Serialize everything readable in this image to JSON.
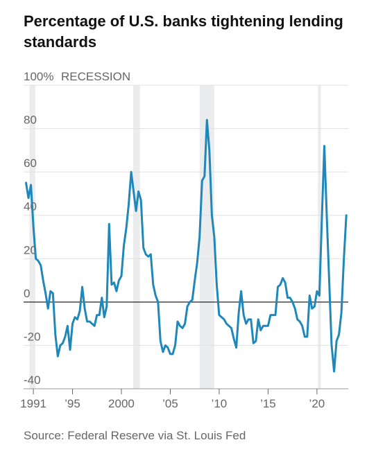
{
  "title": "Percentage of U.S. banks tightening lending standards",
  "source": "Source: Federal Reserve via St. Louis Fed",
  "chart_data": {
    "type": "line",
    "title": "Percentage of U.S. banks tightening lending standards",
    "xlim": [
      1990.0,
      2023.2
    ],
    "ylim": [
      -40,
      100
    ],
    "y_ticks": [
      {
        "value": 100,
        "label": "100%"
      },
      {
        "value": 80,
        "label": "80"
      },
      {
        "value": 60,
        "label": "60"
      },
      {
        "value": 40,
        "label": "40"
      },
      {
        "value": 20,
        "label": "20"
      },
      {
        "value": 0,
        "label": "0"
      },
      {
        "value": -20,
        "label": "-20"
      },
      {
        "value": -40,
        "label": "-40"
      }
    ],
    "x_ticks": [
      {
        "value": 1991,
        "label": "1991"
      },
      {
        "value": 1995,
        "label": "’95"
      },
      {
        "value": 2000,
        "label": "2000"
      },
      {
        "value": 2005,
        "label": "’05"
      },
      {
        "value": 2010,
        "label": "’10"
      },
      {
        "value": 2015,
        "label": "’15"
      },
      {
        "value": 2020,
        "label": "’20"
      }
    ],
    "recession_label": "RECESSION",
    "recessions": [
      [
        1990.6,
        1991.2
      ],
      [
        2001.2,
        2001.9
      ],
      [
        2008.0,
        2009.5
      ],
      [
        2020.1,
        2020.4
      ]
    ],
    "zero_line": true,
    "grid": true,
    "colors": {
      "line": "#1f87b9",
      "recession": "#eaecee",
      "grid": "#e0e0e0",
      "zero": "#222222"
    },
    "series": [
      {
        "x": [
          1990.25,
          1990.5,
          1990.75,
          1991.0,
          1991.25,
          1991.5,
          1991.75,
          1992.0,
          1992.25,
          1992.5,
          1992.75,
          1993.0,
          1993.25,
          1993.5,
          1993.75,
          1994.0,
          1994.25,
          1994.5,
          1994.75,
          1995.0,
          1995.25,
          1995.5,
          1995.75,
          1996.0,
          1996.25,
          1996.5,
          1996.75,
          1997.0,
          1997.25,
          1997.5,
          1997.75,
          1998.0,
          1998.25,
          1998.5,
          1998.75,
          1999.0,
          1999.25,
          1999.5,
          1999.75,
          2000.0,
          2000.25,
          2000.5,
          2000.75,
          2001.0,
          2001.25,
          2001.5,
          2001.75,
          2002.0,
          2002.25,
          2002.5,
          2002.75,
          2003.0,
          2003.25,
          2003.5,
          2003.75,
          2004.0,
          2004.25,
          2004.5,
          2004.75,
          2005.0,
          2005.25,
          2005.5,
          2005.75,
          2006.0,
          2006.25,
          2006.5,
          2006.75,
          2007.0,
          2007.25,
          2007.5,
          2007.75,
          2008.0,
          2008.25,
          2008.5,
          2008.75,
          2009.0,
          2009.25,
          2009.5,
          2009.75,
          2010.0,
          2010.25,
          2010.5,
          2010.75,
          2011.0,
          2011.25,
          2011.5,
          2011.75,
          2012.0,
          2012.25,
          2012.5,
          2012.75,
          2013.0,
          2013.25,
          2013.5,
          2013.75,
          2014.0,
          2014.25,
          2014.5,
          2014.75,
          2015.0,
          2015.25,
          2015.5,
          2015.75,
          2016.0,
          2016.25,
          2016.5,
          2016.75,
          2017.0,
          2017.25,
          2017.5,
          2017.75,
          2018.0,
          2018.25,
          2018.5,
          2018.75,
          2019.0,
          2019.25,
          2019.5,
          2019.75,
          2020.0,
          2020.25,
          2020.5,
          2020.75,
          2021.0,
          2021.25,
          2021.5,
          2021.75,
          2022.0,
          2022.25,
          2022.5,
          2022.75,
          2023.0
        ],
        "y": [
          55,
          48,
          54,
          35,
          20,
          19,
          17,
          10,
          4,
          -3,
          5,
          4,
          -15,
          -25,
          -20,
          -19,
          -16,
          -11,
          -22,
          -10,
          -7,
          -8,
          -4,
          7,
          -3,
          -9,
          -9,
          -10,
          -11,
          -6,
          -6,
          2,
          -7,
          -2,
          36,
          8,
          9,
          5,
          10,
          12,
          26,
          34,
          45,
          60,
          51,
          42,
          51,
          47,
          25,
          22,
          21,
          22,
          8,
          3,
          0,
          -18,
          -23,
          -20,
          -21,
          -24,
          -24,
          -20,
          -9,
          -11,
          -12,
          -10,
          -2,
          0,
          1,
          10,
          18,
          30,
          56,
          58,
          84,
          70,
          40,
          30,
          8,
          -6,
          -7,
          -8,
          -10,
          -11,
          -12,
          -17,
          -21,
          -5,
          5,
          -6,
          -10,
          -8,
          -8,
          -19,
          -18,
          -8,
          -13,
          -11,
          -11,
          -11,
          -6,
          -6,
          -6,
          7,
          8,
          11,
          9,
          2,
          2,
          0,
          -3,
          -8,
          -9,
          -11,
          -16,
          -16,
          3,
          -3,
          -2,
          5,
          3,
          38,
          72,
          40,
          10,
          -20,
          -32,
          -18,
          -15,
          -5,
          20,
          40
        ]
      }
    ]
  }
}
